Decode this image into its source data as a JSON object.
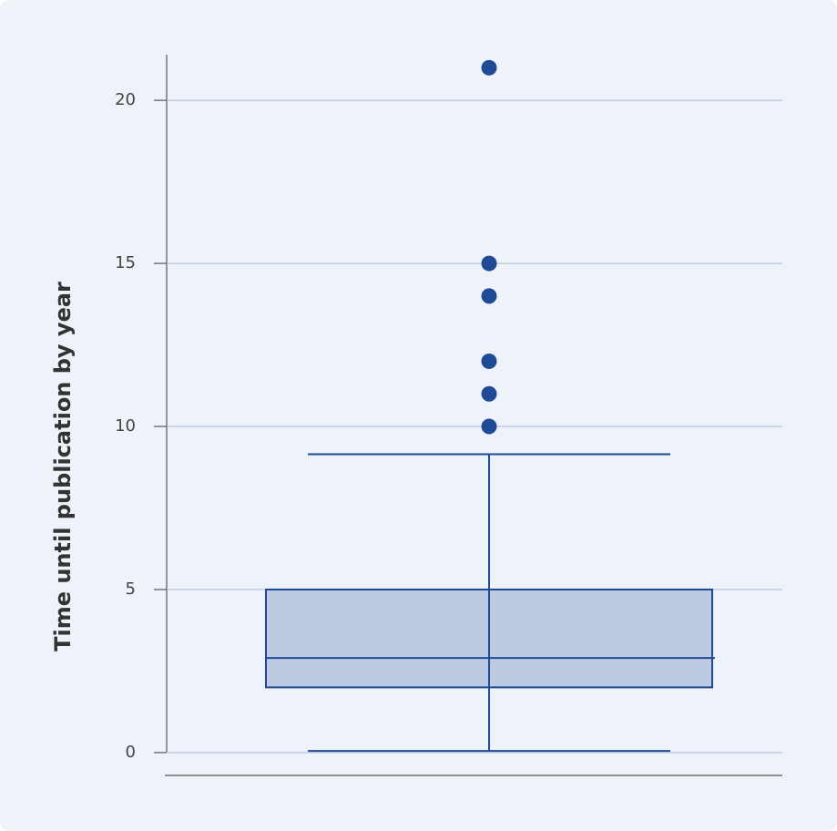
{
  "chart_data": {
    "type": "box",
    "ylabel": "Time until publication by year",
    "ylim": [
      -0.7,
      21.4
    ],
    "yticks": [
      0,
      5,
      10,
      15,
      20
    ],
    "grid": true,
    "color": "#1f4a96",
    "fill": "#bac7e0",
    "boxes": [
      {
        "whisker_low": 0.05,
        "q1": 2,
        "median": 2.9,
        "q3": 5,
        "whisker_high": 9.15,
        "outliers": [
          10,
          11,
          12,
          14,
          15,
          21
        ]
      }
    ]
  }
}
